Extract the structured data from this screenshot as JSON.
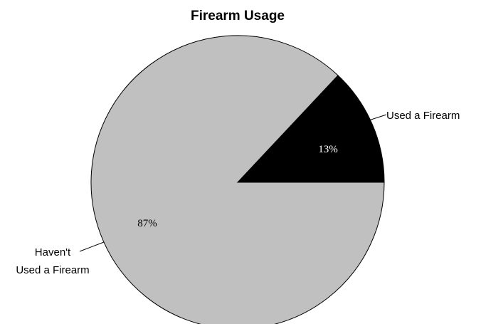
{
  "chart_data": {
    "type": "pie",
    "title": "Firearm Usage",
    "categories": [
      "Used a Firearm",
      "Haven't Used a Firearm"
    ],
    "label_lines": [
      [
        "Used a Firearm"
      ],
      [
        "Haven't",
        "Used a Firearm"
      ]
    ],
    "values": [
      13,
      87
    ],
    "value_labels": [
      "13%",
      "87%"
    ],
    "colors": [
      "#000000",
      "#c0c0c0"
    ],
    "label_colors": [
      "#ffffff",
      "#000000"
    ],
    "start_angle_deg": 0,
    "direction": "counterclockwise",
    "legend": "none"
  }
}
